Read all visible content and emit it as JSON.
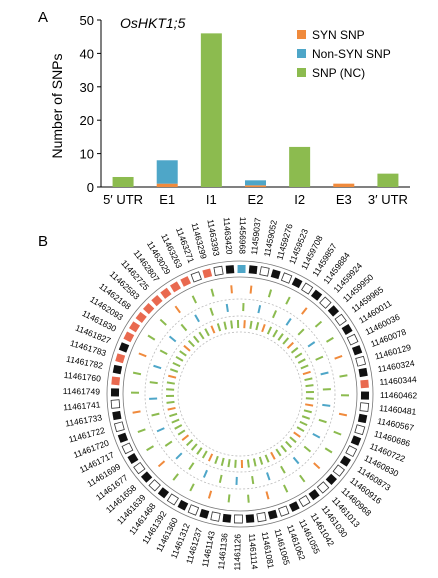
{
  "panel_a": {
    "letter": "A",
    "gene": "OsHKT1;5",
    "chart_data": {
      "type": "bar",
      "title": "OsHKT1;5",
      "xlabel": "",
      "ylabel": "Number of SNPs",
      "categories": [
        "5′ UTR",
        "E1",
        "I1",
        "E2",
        "I2",
        "E3",
        "3′ UTR"
      ],
      "series": [
        {
          "name": "SYN SNP",
          "color": "#f08a3c",
          "values": [
            0,
            1,
            0,
            0.5,
            0,
            1,
            0
          ]
        },
        {
          "name": "Non-SYN SNP",
          "color": "#4ea6c8",
          "values": [
            0,
            7,
            0,
            1.5,
            0,
            0,
            0
          ]
        },
        {
          "name": "SNP (NC)",
          "color": "#8cbb4f",
          "values": [
            3,
            0,
            46,
            0,
            12,
            0,
            4
          ]
        }
      ],
      "stacked": true,
      "ylim": [
        0,
        50
      ],
      "yticks": [
        0,
        10,
        20,
        30,
        40,
        50
      ],
      "grid": false,
      "legend_position": "top-right"
    }
  },
  "panel_b": {
    "letter": "B",
    "chart_data": {
      "type": "circos",
      "labels": [
        "11459037",
        "11459052",
        "11459276",
        "11459523",
        "11459708",
        "11459857",
        "11459884",
        "11459924",
        "11459950",
        "11459965",
        "11460011",
        "11460036",
        "11460078",
        "11460129",
        "11460324",
        "11460344",
        "11460462",
        "11460481",
        "11460567",
        "11460686",
        "11460722",
        "11460830",
        "11460873",
        "11460916",
        "11460968",
        "11461013",
        "11461030",
        "11461042",
        "11461055",
        "11461062",
        "11461065",
        "11461081",
        "11461114",
        "11461126",
        "11461136",
        "11461143",
        "11461237",
        "11461312",
        "11461360",
        "11461392",
        "11461468",
        "11461639",
        "11461658",
        "11461677",
        "11461699",
        "11461717",
        "11461720",
        "11461722",
        "11461733",
        "11461741",
        "11461749",
        "11461760",
        "11461782",
        "11461783",
        "11461827",
        "11461830",
        "11462093",
        "11462168",
        "11462583",
        "11462725",
        "11462807",
        "11463029",
        "11463263",
        "11463271",
        "11463299",
        "11463393",
        "11463420",
        "11456968"
      ],
      "highlight_red_indices": [
        15,
        51,
        53,
        55,
        56,
        57,
        58,
        59,
        60,
        61,
        62,
        64
      ],
      "highlight_blue_indices": [
        67
      ],
      "colors": {
        "black": "#111111",
        "red": "#e9694f",
        "blue": "#4ea6c8",
        "orange": "#f08a3c",
        "green": "#8cbb4f"
      }
    }
  }
}
